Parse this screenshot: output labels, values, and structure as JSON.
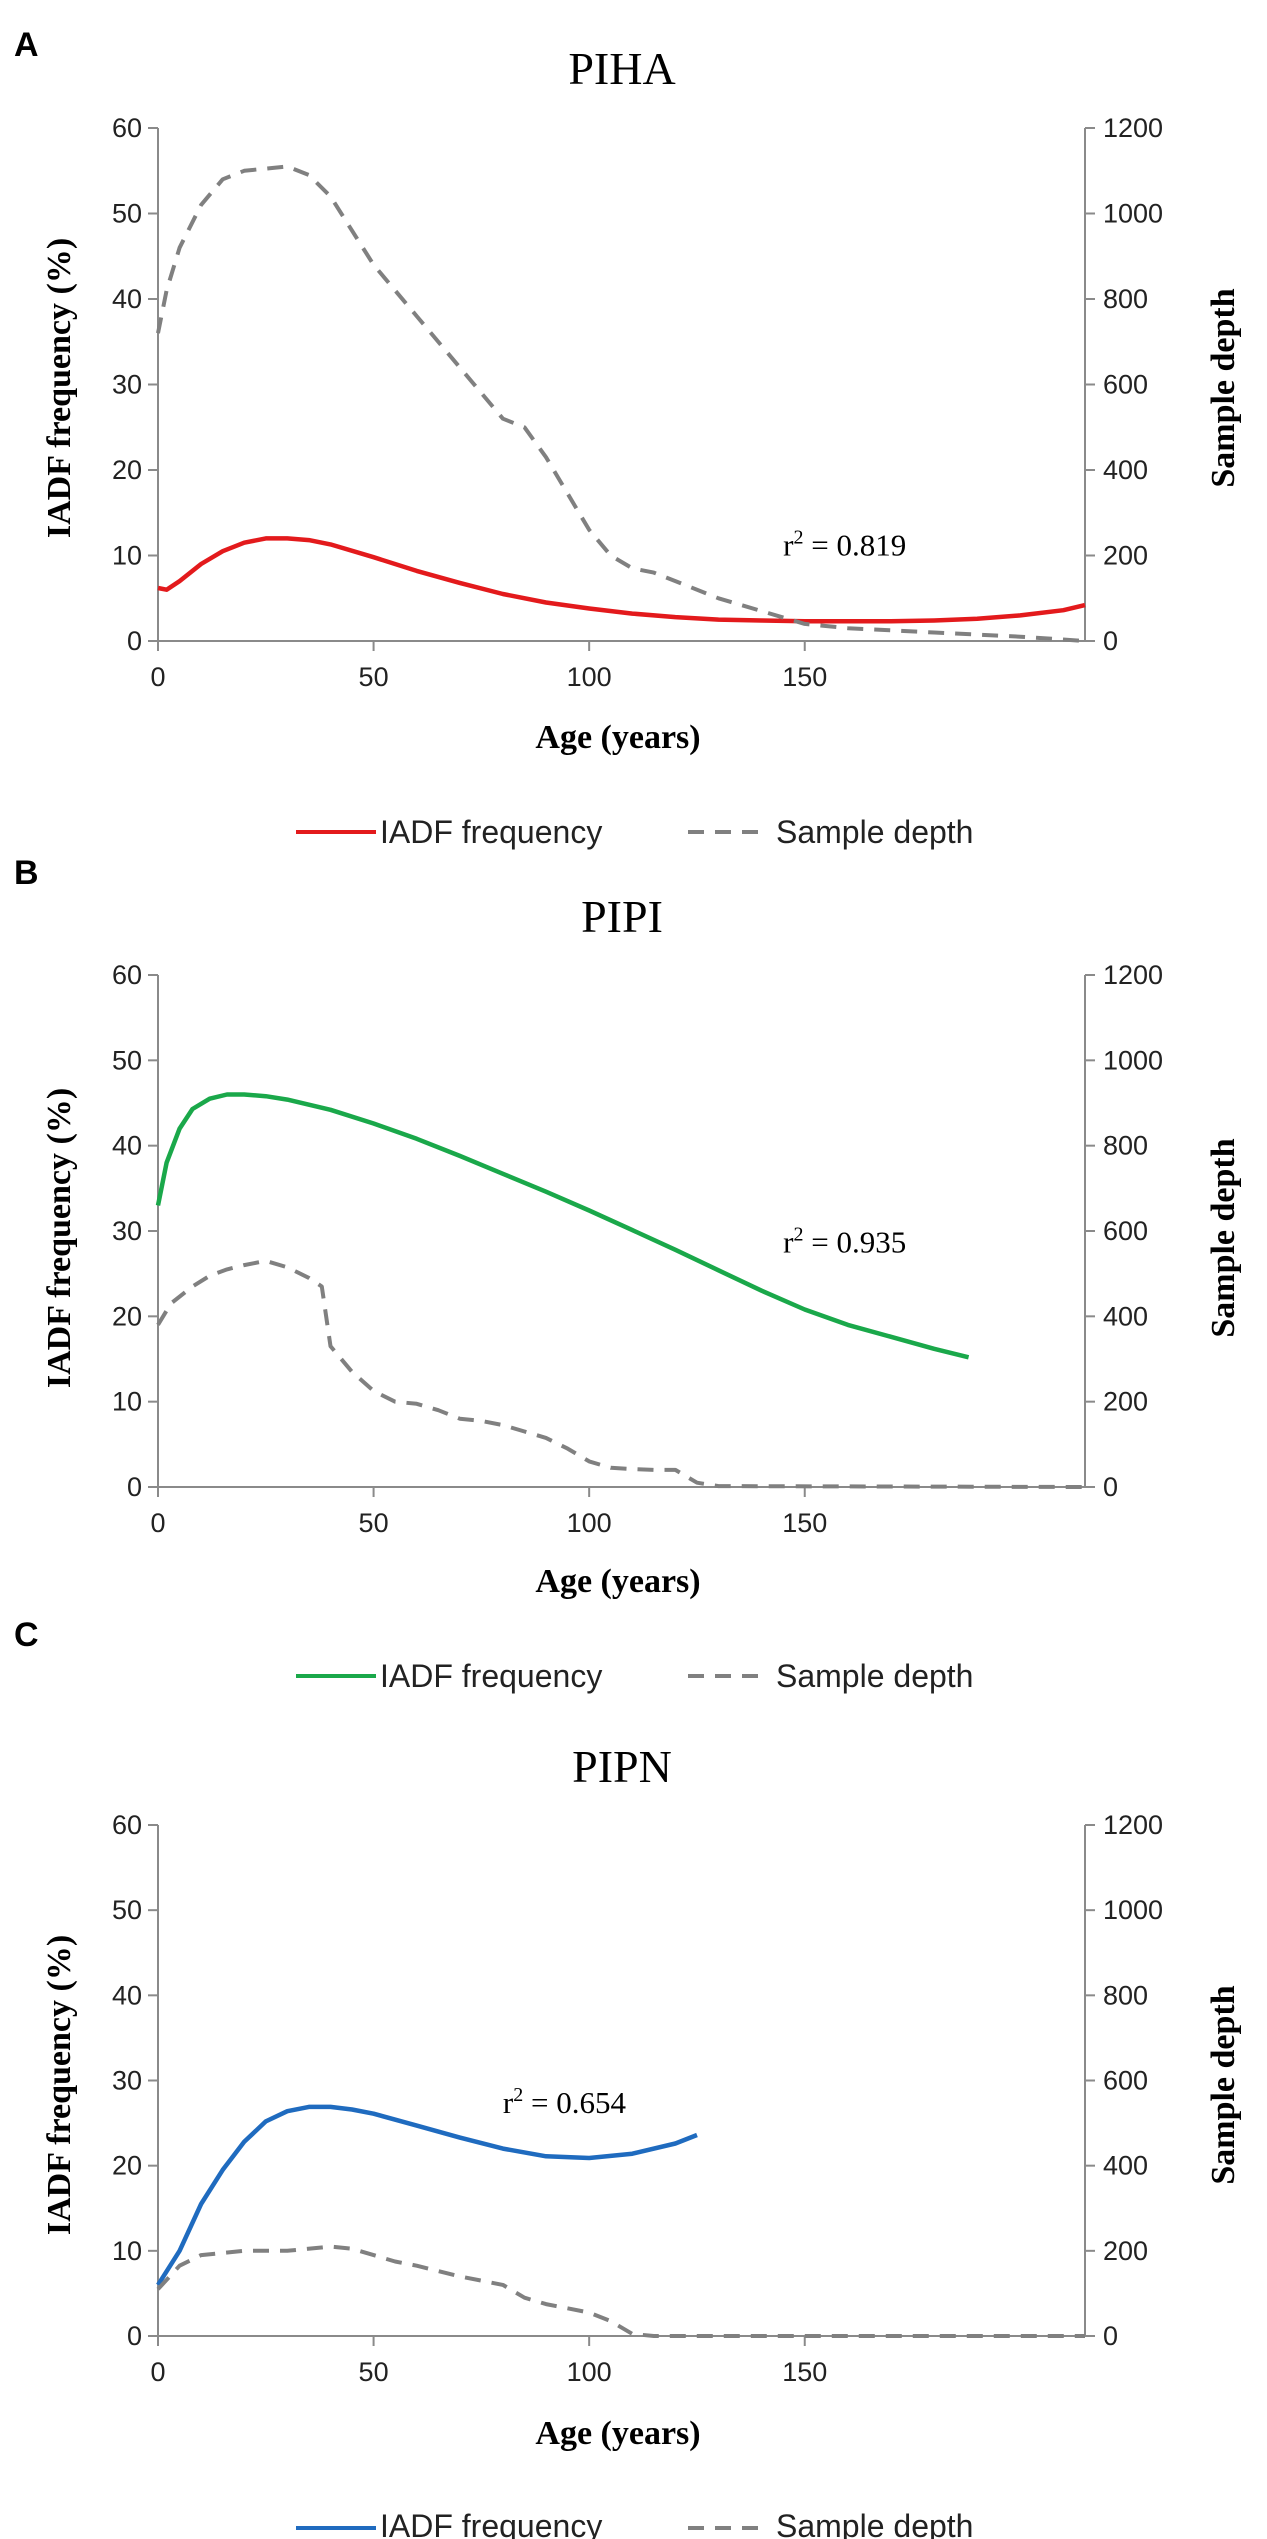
{
  "figure": {
    "colors": {
      "sample_depth": "#808080",
      "axis": "#8a8a8a"
    }
  },
  "chart_data": [
    {
      "type": "line",
      "panel": "A",
      "title": "PIHA",
      "xlabel": "Age (years)",
      "ylabel": "IADF frequency (%)",
      "y2label": "Sample depth",
      "xlim": [
        0,
        215
      ],
      "ylim": [
        0,
        60
      ],
      "y2lim": [
        0,
        1200
      ],
      "xticks": [
        "0",
        "50",
        "100",
        "150"
      ],
      "yticks": [
        "0",
        "10",
        "20",
        "30",
        "40",
        "50",
        "60"
      ],
      "y2ticks": [
        "0",
        "200",
        "400",
        "600",
        "800",
        "1000",
        "1200"
      ],
      "annotation": {
        "base": "r",
        "sup": "2",
        "text": " = 0.819",
        "x": 145,
        "y": 10
      },
      "legend": [
        "IADF frequency",
        "Sample depth"
      ],
      "series": [
        {
          "name": "IADF frequency",
          "axis": "left",
          "color": "#e31a1c",
          "style": "solid",
          "x": [
            0,
            2,
            5,
            10,
            15,
            20,
            25,
            30,
            35,
            40,
            50,
            60,
            70,
            80,
            90,
            100,
            110,
            120,
            130,
            140,
            150,
            160,
            170,
            180,
            190,
            200,
            210,
            215
          ],
          "y": [
            6.2,
            6.0,
            7.0,
            9.0,
            10.5,
            11.5,
            12.0,
            12.0,
            11.8,
            11.3,
            9.8,
            8.2,
            6.8,
            5.5,
            4.5,
            3.8,
            3.2,
            2.8,
            2.5,
            2.4,
            2.3,
            2.3,
            2.3,
            2.4,
            2.6,
            3.0,
            3.6,
            4.2
          ]
        },
        {
          "name": "Sample depth",
          "axis": "right",
          "color": "#808080",
          "style": "dashed",
          "x": [
            0,
            2,
            5,
            10,
            15,
            20,
            25,
            30,
            35,
            40,
            45,
            50,
            60,
            70,
            80,
            85,
            90,
            100,
            105,
            110,
            115,
            120,
            130,
            140,
            150,
            160,
            170,
            180,
            190,
            200,
            215
          ],
          "y": [
            720,
            820,
            920,
            1020,
            1080,
            1100,
            1105,
            1110,
            1090,
            1040,
            960,
            880,
            760,
            640,
            520,
            500,
            430,
            260,
            200,
            170,
            160,
            140,
            100,
            70,
            40,
            30,
            25,
            20,
            15,
            10,
            0
          ]
        }
      ]
    },
    {
      "type": "line",
      "panel": "B",
      "title": "PIPI",
      "xlabel": "Age (years)",
      "ylabel": "IADF frequency (%)",
      "y2label": "Sample depth",
      "xlim": [
        0,
        215
      ],
      "ylim": [
        0,
        60
      ],
      "y2lim": [
        0,
        1200
      ],
      "xticks": [
        "0",
        "50",
        "100",
        "150"
      ],
      "yticks": [
        "0",
        "10",
        "20",
        "30",
        "40",
        "50",
        "60"
      ],
      "y2ticks": [
        "0",
        "200",
        "400",
        "600",
        "800",
        "1000",
        "1200"
      ],
      "annotation": {
        "base": "r",
        "sup": "2",
        "text": " = 0.935",
        "x": 145,
        "y": 27.5
      },
      "legend": [
        "IADF frequency",
        "Sample depth"
      ],
      "series": [
        {
          "name": "IADF frequency",
          "axis": "left",
          "color": "#1aa84a",
          "style": "solid",
          "x": [
            0,
            2,
            5,
            8,
            12,
            16,
            20,
            25,
            30,
            40,
            50,
            60,
            70,
            80,
            90,
            100,
            110,
            120,
            130,
            140,
            150,
            160,
            170,
            180,
            188
          ],
          "y": [
            33,
            38,
            42,
            44.3,
            45.5,
            46,
            46,
            45.8,
            45.4,
            44.2,
            42.6,
            40.8,
            38.8,
            36.7,
            34.6,
            32.4,
            30.1,
            27.8,
            25.4,
            23,
            20.8,
            19.0,
            17.6,
            16.2,
            15.2
          ]
        },
        {
          "name": "Sample depth",
          "axis": "right",
          "color": "#808080",
          "style": "dashed",
          "x": [
            0,
            3,
            8,
            12,
            16,
            20,
            25,
            30,
            35,
            38,
            40,
            45,
            50,
            55,
            60,
            65,
            70,
            75,
            80,
            85,
            90,
            95,
            100,
            105,
            110,
            115,
            120,
            125,
            130,
            215
          ],
          "y": [
            380,
            430,
            470,
            495,
            510,
            520,
            530,
            515,
            490,
            470,
            330,
            270,
            225,
            200,
            195,
            180,
            160,
            155,
            145,
            130,
            115,
            90,
            60,
            45,
            42,
            40,
            40,
            10,
            2,
            0
          ]
        }
      ]
    },
    {
      "type": "line",
      "panel": "C",
      "title": "PIPN",
      "xlabel": "Age (years)",
      "ylabel": "IADF frequency (%)",
      "y2label": "Sample depth",
      "xlim": [
        0,
        215
      ],
      "ylim": [
        0,
        60
      ],
      "y2lim": [
        0,
        1200
      ],
      "xticks": [
        "0",
        "50",
        "100",
        "150"
      ],
      "yticks": [
        "0",
        "10",
        "20",
        "30",
        "40",
        "50",
        "60"
      ],
      "y2ticks": [
        "0",
        "200",
        "400",
        "600",
        "800",
        "1000",
        "1200"
      ],
      "annotation": {
        "base": "r",
        "sup": "2",
        "text": " = 0.654",
        "x": 80,
        "y": 26.2
      },
      "legend": [
        "IADF frequency",
        "Sample depth"
      ],
      "series": [
        {
          "name": "IADF frequency",
          "axis": "left",
          "color": "#1f6bbf",
          "style": "solid",
          "x": [
            0,
            5,
            10,
            15,
            20,
            25,
            30,
            35,
            40,
            45,
            50,
            60,
            70,
            80,
            90,
            100,
            110,
            120,
            125
          ],
          "y": [
            6,
            10,
            15.5,
            19.5,
            22.8,
            25.2,
            26.4,
            26.9,
            26.9,
            26.6,
            26.1,
            24.7,
            23.3,
            22.0,
            21.1,
            20.9,
            21.4,
            22.6,
            23.6
          ]
        },
        {
          "name": "Sample depth",
          "axis": "right",
          "color": "#808080",
          "style": "dashed",
          "x": [
            0,
            5,
            10,
            20,
            30,
            40,
            45,
            50,
            55,
            60,
            70,
            80,
            85,
            90,
            95,
            100,
            105,
            110,
            115,
            215
          ],
          "y": [
            110,
            165,
            190,
            200,
            200,
            210,
            205,
            190,
            175,
            165,
            140,
            120,
            90,
            75,
            65,
            55,
            35,
            5,
            0,
            0
          ]
        }
      ]
    }
  ]
}
